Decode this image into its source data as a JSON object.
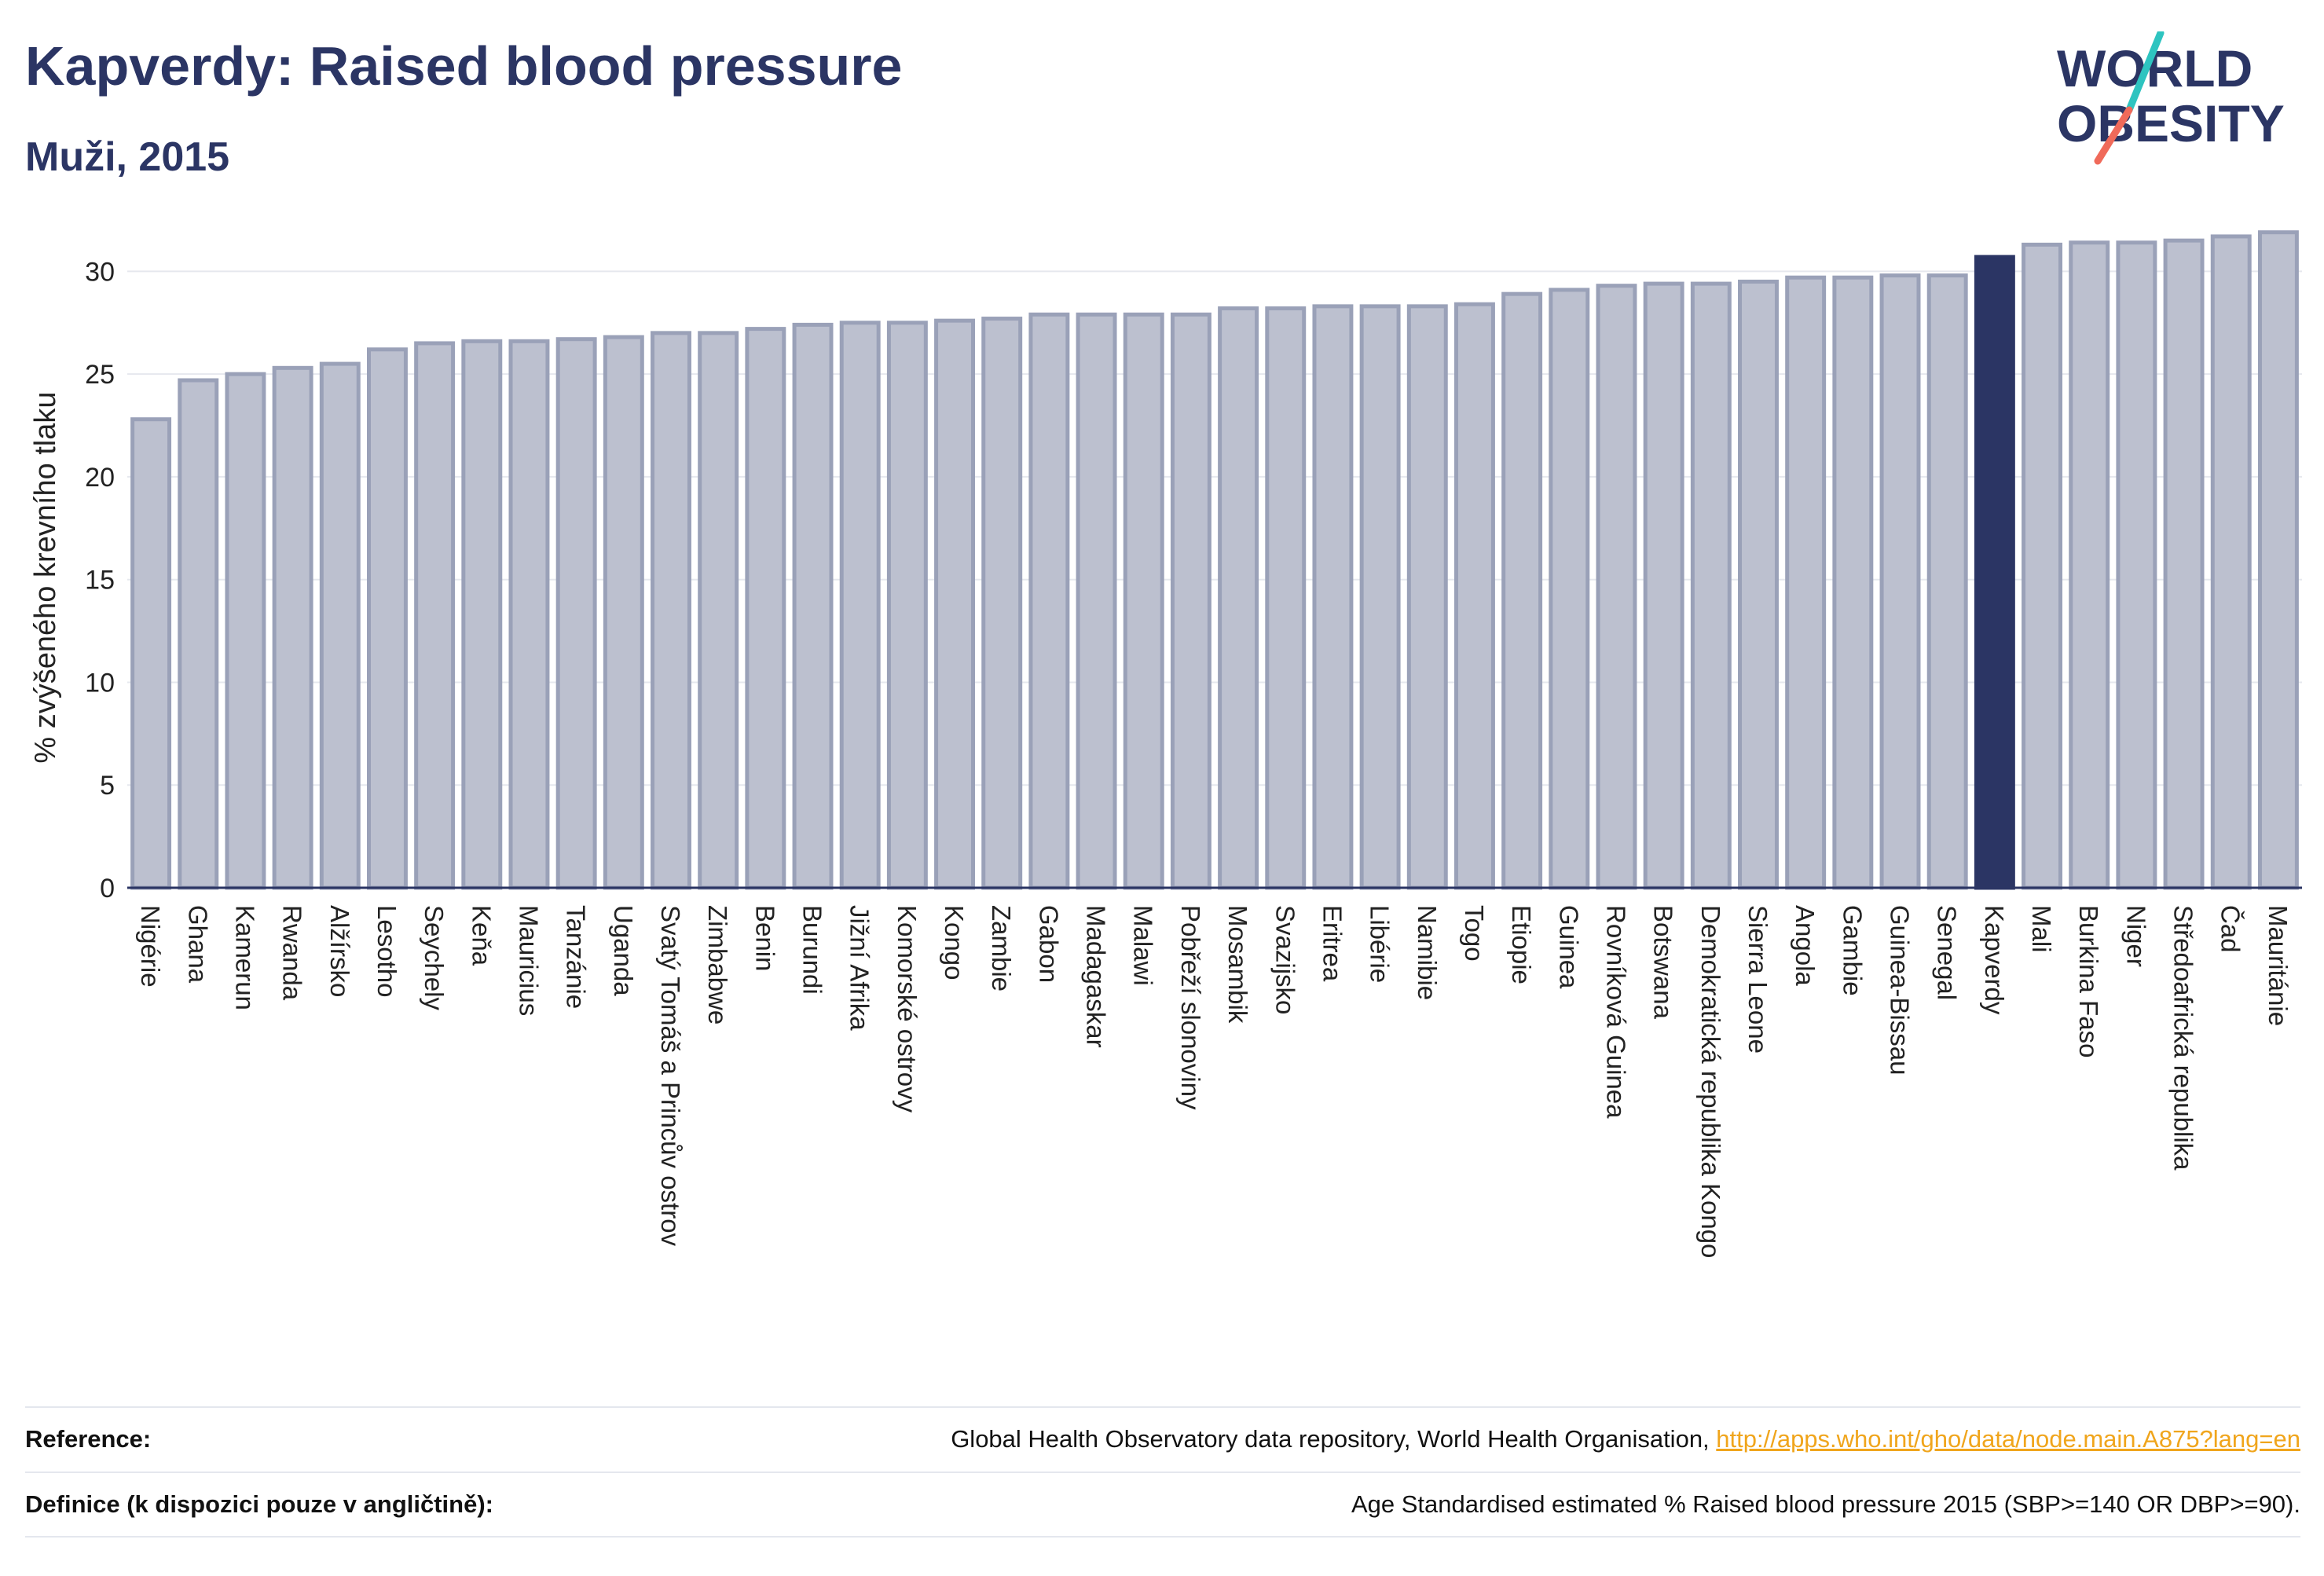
{
  "header": {
    "title": "Kapverdy: Raised blood pressure",
    "subtitle": "Muži, 2015",
    "logo_line1": "WORLD",
    "logo_line2": "OBESITY"
  },
  "chart_data": {
    "type": "bar",
    "title": "Kapverdy: Raised blood pressure",
    "subtitle": "Muži, 2015",
    "xlabel": "",
    "ylabel": "% zvýšeného krevního tlaku",
    "ylim": [
      0,
      32.5
    ],
    "yticks": [
      0,
      5,
      10,
      15,
      20,
      25,
      30
    ],
    "grid": true,
    "highlight": "Kapverdy",
    "colors": {
      "bar": "#bcc0cf",
      "bar_edge": "#9aa1b8",
      "highlight": "#2b3564",
      "grid": "#e6e8ee",
      "axis": "#2b3564"
    },
    "categories": [
      "Nigérie",
      "Ghana",
      "Kamerun",
      "Rwanda",
      "Alžírsko",
      "Lesotho",
      "Seychely",
      "Keňa",
      "Mauricius",
      "Tanzánie",
      "Uganda",
      "Svatý Tomáš a Princův ostrov",
      "Zimbabwe",
      "Benin",
      "Burundi",
      "Jižní Afrika",
      "Komorské ostrovy",
      "Kongo",
      "Zambie",
      "Gabon",
      "Madagaskar",
      "Malawi",
      "Pobřeží slonoviny",
      "Mosambik",
      "Svazijsko",
      "Eritrea",
      "Libérie",
      "Namibie",
      "Togo",
      "Etiopie",
      "Guinea",
      "Rovníková Guinea",
      "Botswana",
      "Demokratická republika Kongo",
      "Sierra Leone",
      "Angola",
      "Gambie",
      "Guinea-Bissau",
      "Senegal",
      "Kapverdy",
      "Mali",
      "Burkina Faso",
      "Niger",
      "Středoafrická republika",
      "Čad",
      "Mauritánie"
    ],
    "values": [
      22.8,
      24.7,
      25.0,
      25.3,
      25.5,
      26.2,
      26.5,
      26.6,
      26.6,
      26.7,
      26.8,
      27.0,
      27.0,
      27.2,
      27.4,
      27.5,
      27.5,
      27.6,
      27.7,
      27.9,
      27.9,
      27.9,
      27.9,
      28.2,
      28.2,
      28.3,
      28.3,
      28.3,
      28.4,
      28.9,
      29.1,
      29.3,
      29.4,
      29.4,
      29.5,
      29.7,
      29.7,
      29.8,
      29.8,
      30.7,
      31.3,
      31.4,
      31.4,
      31.5,
      31.7,
      31.9
    ]
  },
  "footer": {
    "reference_label": "Reference:",
    "reference_text": "Global Health Observatory data repository, World Health Organisation, ",
    "reference_link": "http://apps.who.int/gho/data/node.main.A875?lang=en",
    "definition_label": "Definice (k dispozici pouze v angličtině):",
    "definition_text": "Age Standardised estimated % Raised blood pressure 2015 (SBP>=140 OR DBP>=90)."
  }
}
